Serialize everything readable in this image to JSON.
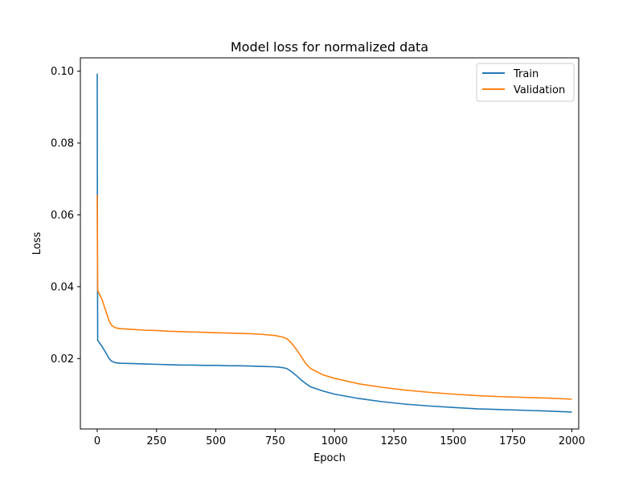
{
  "chart_data": {
    "type": "line",
    "title": "Model loss for normalized data",
    "xlabel": "Epoch",
    "ylabel": "Loss",
    "xlim": [
      -71,
      2029
    ],
    "ylim": [
      0.0004,
      0.1037
    ],
    "xticks": [
      0,
      250,
      500,
      750,
      1000,
      1250,
      1500,
      1750,
      2000
    ],
    "xtick_labels": [
      "0",
      "250",
      "500",
      "750",
      "1000",
      "1250",
      "1500",
      "1750",
      "2000"
    ],
    "yticks": [
      0.02,
      0.04,
      0.06,
      0.08,
      0.1
    ],
    "ytick_labels": [
      "0.02",
      "0.04",
      "0.06",
      "0.08",
      "0.10"
    ],
    "grid": false,
    "legend_position": "top-right",
    "colors": {
      "train": "#1f77b4",
      "validation": "#ff7f0e"
    },
    "series": [
      {
        "name": "Train",
        "color": "#1f77b4",
        "x": [
          0,
          1,
          2,
          5,
          10,
          20,
          30,
          40,
          50,
          60,
          70,
          80,
          100,
          150,
          200,
          250,
          300,
          350,
          400,
          450,
          500,
          550,
          600,
          650,
          700,
          750,
          780,
          800,
          820,
          840,
          860,
          880,
          900,
          950,
          1000,
          1100,
          1200,
          1300,
          1400,
          1500,
          1600,
          1700,
          1800,
          1900,
          2000
        ],
        "y": [
          0.0993,
          0.05,
          0.025,
          0.0248,
          0.0243,
          0.0234,
          0.0223,
          0.0212,
          0.02,
          0.0193,
          0.019,
          0.0188,
          0.0187,
          0.0186,
          0.0185,
          0.0184,
          0.0183,
          0.0182,
          0.0182,
          0.0181,
          0.0181,
          0.018,
          0.018,
          0.0179,
          0.0178,
          0.0177,
          0.0175,
          0.0172,
          0.0163,
          0.0152,
          0.014,
          0.013,
          0.0121,
          0.011,
          0.0101,
          0.0089,
          0.008,
          0.0073,
          0.0068,
          0.0064,
          0.006,
          0.0058,
          0.0056,
          0.0054,
          0.0051
        ]
      },
      {
        "name": "Validation",
        "color": "#ff7f0e",
        "x": [
          0,
          1,
          2,
          5,
          10,
          20,
          30,
          40,
          50,
          60,
          70,
          80,
          100,
          150,
          200,
          250,
          300,
          350,
          400,
          450,
          500,
          550,
          600,
          650,
          700,
          750,
          780,
          800,
          820,
          840,
          860,
          880,
          900,
          950,
          1000,
          1100,
          1200,
          1300,
          1400,
          1500,
          1600,
          1700,
          1800,
          1900,
          2000
        ],
        "y": [
          0.0655,
          0.05,
          0.039,
          0.0385,
          0.0378,
          0.0365,
          0.0345,
          0.0325,
          0.0305,
          0.0293,
          0.0288,
          0.0285,
          0.0283,
          0.0281,
          0.0279,
          0.0278,
          0.0276,
          0.0275,
          0.0274,
          0.0273,
          0.0272,
          0.0271,
          0.027,
          0.0269,
          0.0267,
          0.0264,
          0.026,
          0.0255,
          0.0242,
          0.0225,
          0.0205,
          0.0185,
          0.0172,
          0.0155,
          0.0145,
          0.013,
          0.012,
          0.0112,
          0.0106,
          0.0101,
          0.0097,
          0.0094,
          0.0092,
          0.009,
          0.0087
        ]
      }
    ]
  }
}
